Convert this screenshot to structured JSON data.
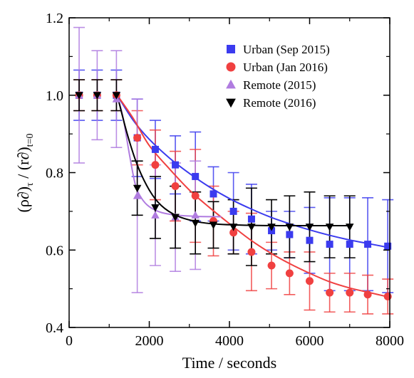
{
  "chart_data": {
    "type": "scatter",
    "xlabel": "Time / seconds",
    "ylabel": "(ρ∂)τ / (r∂)t=0",
    "ylabel_parts": {
      "a": "(ρ∂)",
      "a_sub": "τ",
      "mid": " / (r∂)",
      "b_sub": "t=0"
    },
    "xlim": [
      0,
      8000
    ],
    "ylim": [
      0.4,
      1.2
    ],
    "x_ticks": [
      0,
      2000,
      4000,
      6000,
      8000
    ],
    "y_ticks": [
      0.4,
      0.6,
      0.8,
      1.0,
      1.2
    ],
    "x_tick_labels": [
      "0",
      "2000",
      "4000",
      "6000",
      "8000"
    ],
    "y_tick_labels": [
      "0.4",
      "0.6",
      "0.8",
      "1.0",
      "1.2"
    ],
    "legend_position": "top-right",
    "series": [
      {
        "name": "Urban (Sep 2015)",
        "color": "#3b3bef",
        "marker": "square",
        "x": [
          250,
          700,
          1180,
          1700,
          2150,
          2650,
          3150,
          3600,
          4100,
          4550,
          5050,
          5500,
          6000,
          6500,
          7000,
          7450,
          7950
        ],
        "y": [
          1.0,
          1.0,
          1.0,
          0.89,
          0.86,
          0.82,
          0.79,
          0.745,
          0.7,
          0.68,
          0.65,
          0.64,
          0.625,
          0.615,
          0.615,
          0.615,
          0.61
        ],
        "err": [
          0.065,
          0.065,
          0.065,
          0.1,
          0.075,
          0.075,
          0.115,
          0.07,
          0.1,
          0.09,
          0.05,
          0.06,
          0.085,
          0.12,
          0.12,
          0.12,
          0.12
        ],
        "fit": [
          [
            1200,
            1.0
          ],
          [
            1600,
            0.935
          ],
          [
            2000,
            0.886
          ],
          [
            2500,
            0.838
          ],
          [
            3000,
            0.798
          ],
          [
            3500,
            0.763
          ],
          [
            4000,
            0.733
          ],
          [
            4500,
            0.708
          ],
          [
            5000,
            0.686
          ],
          [
            5500,
            0.668
          ],
          [
            6000,
            0.652
          ],
          [
            6500,
            0.638
          ],
          [
            7000,
            0.626
          ],
          [
            7500,
            0.616
          ],
          [
            8000,
            0.606
          ]
        ]
      },
      {
        "name": "Urban (Jan 2016)",
        "color": "#f04040",
        "marker": "circle",
        "x": [
          250,
          700,
          1180,
          1700,
          2150,
          2650,
          3150,
          3600,
          4100,
          4550,
          5050,
          5500,
          6000,
          6500,
          7000,
          7450,
          7950
        ],
        "y": [
          1.0,
          1.0,
          1.0,
          0.89,
          0.82,
          0.765,
          0.74,
          0.675,
          0.645,
          0.595,
          0.56,
          0.54,
          0.52,
          0.49,
          0.49,
          0.485,
          0.48
        ],
        "err": [
          0.04,
          0.04,
          0.04,
          0.07,
          0.09,
          0.09,
          0.12,
          0.09,
          0.055,
          0.1,
          0.06,
          0.055,
          0.075,
          0.05,
          0.05,
          0.05,
          0.045
        ],
        "fit": [
          [
            1200,
            1.0
          ],
          [
            1600,
            0.94
          ],
          [
            2000,
            0.87
          ],
          [
            2500,
            0.81
          ],
          [
            3000,
            0.755
          ],
          [
            3500,
            0.71
          ],
          [
            4000,
            0.668
          ],
          [
            4500,
            0.628
          ],
          [
            5000,
            0.594
          ],
          [
            5500,
            0.565
          ],
          [
            6000,
            0.54
          ],
          [
            6500,
            0.518
          ],
          [
            7000,
            0.502
          ],
          [
            7500,
            0.49
          ],
          [
            8000,
            0.478
          ]
        ]
      },
      {
        "name": "Remote (2015)",
        "color": "#b07ce0",
        "marker": "triangle-up",
        "x": [
          250,
          700,
          1180,
          1700,
          2150,
          2650,
          3150
        ],
        "y": [
          1.0,
          1.0,
          0.99,
          0.74,
          0.69,
          0.685,
          0.69
        ],
        "err": [
          0.175,
          0.115,
          0.125,
          0.25,
          0.13,
          0.14,
          0.14
        ],
        "fit": [
          [
            1200,
            1.0
          ],
          [
            1350,
            0.94
          ],
          [
            1500,
            0.85
          ],
          [
            1650,
            0.77
          ],
          [
            1800,
            0.735
          ],
          [
            2000,
            0.712
          ],
          [
            2300,
            0.697
          ],
          [
            2700,
            0.69
          ],
          [
            3200,
            0.687
          ],
          [
            3800,
            0.686
          ]
        ]
      },
      {
        "name": "Remote (2016)",
        "color": "#000000",
        "marker": "triangle-down",
        "x": [
          250,
          700,
          1180,
          1700,
          2150,
          2650,
          3150,
          3600,
          4100,
          4550,
          5050,
          5500,
          6000,
          6500,
          7000
        ],
        "y": [
          1.0,
          1.0,
          1.0,
          0.76,
          0.71,
          0.685,
          0.67,
          0.665,
          0.66,
          0.66,
          0.66,
          0.66,
          0.66,
          0.66,
          0.66
        ],
        "err": [
          0.04,
          0.04,
          0.04,
          0.07,
          0.08,
          0.08,
          0.08,
          0.06,
          0.07,
          0.1,
          0.07,
          0.08,
          0.09,
          0.08,
          0.08
        ],
        "fit": [
          [
            1200,
            1.0
          ],
          [
            1450,
            0.9
          ],
          [
            1700,
            0.82
          ],
          [
            2000,
            0.755
          ],
          [
            2300,
            0.715
          ],
          [
            2700,
            0.688
          ],
          [
            3200,
            0.673
          ],
          [
            3700,
            0.667
          ],
          [
            4500,
            0.664
          ],
          [
            5500,
            0.663
          ],
          [
            7000,
            0.663
          ]
        ]
      }
    ]
  }
}
